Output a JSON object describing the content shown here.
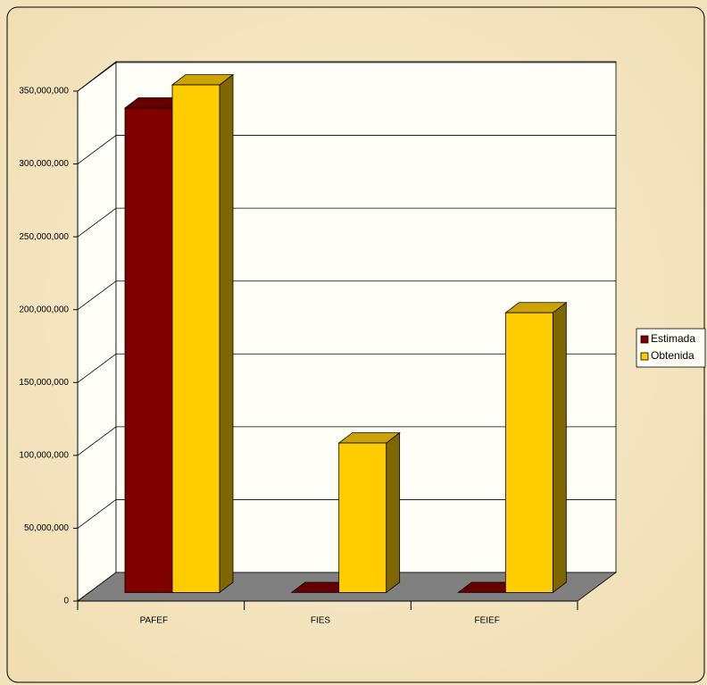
{
  "chart_data": {
    "type": "bar3d",
    "categories": [
      "PAFEF",
      "FIES",
      "FEIEF"
    ],
    "series": [
      {
        "name": "Estimada",
        "color": "#800000",
        "values": [
          332500000,
          0,
          0
        ]
      },
      {
        "name": "Obtenida",
        "color": "#ffcc00",
        "values": [
          348400000,
          102600000,
          192000000
        ]
      }
    ],
    "ylim": [
      0,
      350000000
    ],
    "yticks": [
      0,
      {
        "value": 50000000,
        "label": "50,000,000"
      },
      {
        "value": 100000000,
        "label": "100,000,000"
      },
      {
        "value": 150000000,
        "label": "150,000,000"
      },
      {
        "value": 200000000,
        "label": "200,000,000"
      },
      {
        "value": 250000000,
        "label": "250,000,000"
      },
      {
        "value": 300000000,
        "label": "300,000,000"
      },
      {
        "value": 350000000,
        "label": "350,000,000"
      }
    ],
    "grid": true,
    "legend": "right"
  }
}
